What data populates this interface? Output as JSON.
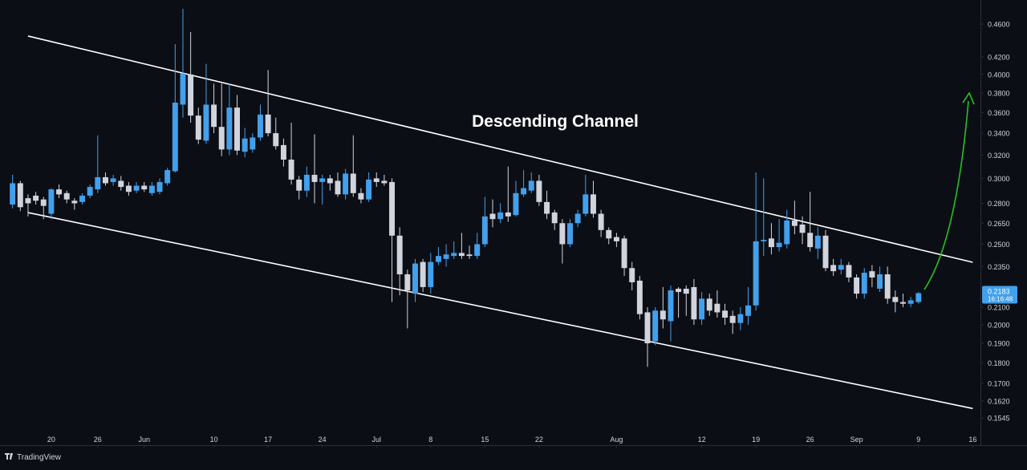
{
  "chart_data": {
    "type": "candlestick",
    "title": "Descending Channel",
    "log_scale": true,
    "grid": false,
    "up_color": "#42a0ec",
    "down_color": "#d1d4dc",
    "x": [
      "May 15",
      "May 16",
      "May 17",
      "May 18",
      "May 19",
      "May 20",
      "May 21",
      "May 22",
      "May 23",
      "May 24",
      "May 25",
      "May 26",
      "May 27",
      "May 28",
      "May 29",
      "May 30",
      "May 31",
      "Jun 1",
      "Jun 2",
      "Jun 3",
      "Jun 4",
      "Jun 5",
      "Jun 6",
      "Jun 7",
      "Jun 8",
      "Jun 9",
      "Jun 10",
      "Jun 11",
      "Jun 12",
      "Jun 13",
      "Jun 14",
      "Jun 15",
      "Jun 16",
      "Jun 17",
      "Jun 18",
      "Jun 19",
      "Jun 20",
      "Jun 21",
      "Jun 22",
      "Jun 23",
      "Jun 24",
      "Jun 25",
      "Jun 26",
      "Jun 27",
      "Jun 28",
      "Jun 29",
      "Jun 30",
      "Jul 1",
      "Jul 2",
      "Jul 3",
      "Jul 4",
      "Jul 5",
      "Jul 6",
      "Jul 7",
      "Jul 8",
      "Jul 9",
      "Jul 10",
      "Jul 11",
      "Jul 12",
      "Jul 13",
      "Jul 14",
      "Jul 15",
      "Jul 16",
      "Jul 17",
      "Jul 18",
      "Jul 19",
      "Jul 20",
      "Jul 21",
      "Jul 22",
      "Jul 23",
      "Jul 24",
      "Jul 25",
      "Jul 26",
      "Jul 27",
      "Jul 28",
      "Jul 29",
      "Jul 30",
      "Jul 31",
      "Aug 1",
      "Aug 2",
      "Aug 3",
      "Aug 4",
      "Aug 5",
      "Aug 6",
      "Aug 7",
      "Aug 8",
      "Aug 9",
      "Aug 10",
      "Aug 11",
      "Aug 12",
      "Aug 13",
      "Aug 14",
      "Aug 15",
      "Aug 16",
      "Aug 17",
      "Aug 18",
      "Aug 19",
      "Aug 20",
      "Aug 21",
      "Aug 22",
      "Aug 23",
      "Aug 24",
      "Aug 25",
      "Aug 26",
      "Aug 27",
      "Aug 28",
      "Aug 29",
      "Aug 30",
      "Aug 31",
      "Sep 1",
      "Sep 2",
      "Sep 3",
      "Sep 4",
      "Sep 5",
      "Sep 6",
      "Sep 7",
      "Sep 8",
      "Sep 9"
    ],
    "open": [
      0.279,
      0.296,
      0.284,
      0.286,
      0.283,
      0.272,
      0.291,
      0.288,
      0.282,
      0.281,
      0.286,
      0.291,
      0.301,
      0.297,
      0.298,
      0.294,
      0.29,
      0.294,
      0.288,
      0.289,
      0.296,
      0.306,
      0.368,
      0.4,
      0.357,
      0.333,
      0.368,
      0.346,
      0.325,
      0.365,
      0.323,
      0.325,
      0.336,
      0.358,
      0.34,
      0.329,
      0.316,
      0.299,
      0.29,
      0.303,
      0.297,
      0.3,
      0.298,
      0.287,
      0.304,
      0.288,
      0.283,
      0.3,
      0.298,
      0.297,
      0.256,
      0.23,
      0.218,
      0.238,
      0.222,
      0.238,
      0.24,
      0.242,
      0.244,
      0.243,
      0.242,
      0.25,
      0.272,
      0.268,
      0.273,
      0.271,
      0.287,
      0.29,
      0.298,
      0.281,
      0.273,
      0.265,
      0.25,
      0.265,
      0.272,
      0.287,
      0.272,
      0.26,
      0.255,
      0.254,
      0.234,
      0.226,
      0.207,
      0.191,
      0.208,
      0.202,
      0.221,
      0.221,
      0.222,
      0.203,
      0.215,
      0.212,
      0.208,
      0.205,
      0.201,
      0.205,
      0.211,
      0.252,
      0.254,
      0.248,
      0.25,
      0.267,
      0.264,
      0.258,
      0.247,
      0.256,
      0.236,
      0.233,
      0.236,
      0.228,
      0.218,
      0.232,
      0.221,
      0.23,
      0.216,
      0.213,
      0.212,
      0.213
    ],
    "high": [
      0.303,
      0.298,
      0.287,
      0.289,
      0.285,
      0.292,
      0.295,
      0.29,
      0.284,
      0.288,
      0.295,
      0.338,
      0.305,
      0.303,
      0.302,
      0.297,
      0.297,
      0.297,
      0.297,
      0.3,
      0.309,
      0.435,
      0.48,
      0.45,
      0.365,
      0.412,
      0.39,
      0.39,
      0.39,
      0.378,
      0.345,
      0.34,
      0.368,
      0.405,
      0.355,
      0.335,
      0.35,
      0.302,
      0.31,
      0.339,
      0.303,
      0.303,
      0.305,
      0.308,
      0.338,
      0.292,
      0.305,
      0.305,
      0.303,
      0.3,
      0.262,
      0.233,
      0.24,
      0.24,
      0.244,
      0.248,
      0.25,
      0.252,
      0.258,
      0.249,
      0.258,
      0.285,
      0.283,
      0.28,
      0.31,
      0.298,
      0.307,
      0.305,
      0.303,
      0.29,
      0.275,
      0.268,
      0.268,
      0.275,
      0.303,
      0.298,
      0.275,
      0.262,
      0.258,
      0.256,
      0.238,
      0.229,
      0.21,
      0.21,
      0.222,
      0.223,
      0.222,
      0.223,
      0.227,
      0.219,
      0.218,
      0.22,
      0.212,
      0.208,
      0.21,
      0.222,
      0.305,
      0.3,
      0.265,
      0.268,
      0.275,
      0.282,
      0.27,
      0.289,
      0.262,
      0.26,
      0.24,
      0.24,
      0.238,
      0.23,
      0.234,
      0.236,
      0.235,
      0.235,
      0.22,
      0.218,
      0.216,
      0.219
    ],
    "low": [
      0.276,
      0.274,
      0.27,
      0.279,
      0.268,
      0.268,
      0.284,
      0.28,
      0.275,
      0.279,
      0.284,
      0.288,
      0.294,
      0.294,
      0.29,
      0.286,
      0.288,
      0.289,
      0.286,
      0.287,
      0.294,
      0.305,
      0.355,
      0.35,
      0.33,
      0.33,
      0.34,
      0.319,
      0.32,
      0.32,
      0.318,
      0.322,
      0.333,
      0.337,
      0.325,
      0.31,
      0.295,
      0.283,
      0.285,
      0.28,
      0.279,
      0.29,
      0.285,
      0.283,
      0.285,
      0.28,
      0.281,
      0.293,
      0.294,
      0.213,
      0.217,
      0.198,
      0.213,
      0.219,
      0.218,
      0.236,
      0.235,
      0.24,
      0.24,
      0.24,
      0.24,
      0.248,
      0.262,
      0.265,
      0.266,
      0.27,
      0.285,
      0.288,
      0.278,
      0.268,
      0.26,
      0.237,
      0.248,
      0.262,
      0.27,
      0.269,
      0.255,
      0.25,
      0.248,
      0.229,
      0.22,
      0.203,
      0.178,
      0.189,
      0.198,
      0.191,
      0.204,
      0.205,
      0.2,
      0.2,
      0.205,
      0.204,
      0.2,
      0.195,
      0.197,
      0.2,
      0.208,
      0.242,
      0.243,
      0.245,
      0.247,
      0.257,
      0.25,
      0.245,
      0.24,
      0.232,
      0.229,
      0.23,
      0.225,
      0.215,
      0.215,
      0.222,
      0.219,
      0.212,
      0.207,
      0.21,
      0.21,
      0.212
    ],
    "close": [
      0.296,
      0.277,
      0.28,
      0.282,
      0.278,
      0.291,
      0.287,
      0.283,
      0.28,
      0.286,
      0.293,
      0.301,
      0.296,
      0.3,
      0.293,
      0.289,
      0.294,
      0.291,
      0.294,
      0.297,
      0.307,
      0.37,
      0.401,
      0.357,
      0.334,
      0.368,
      0.346,
      0.325,
      0.365,
      0.324,
      0.335,
      0.336,
      0.358,
      0.34,
      0.328,
      0.316,
      0.299,
      0.29,
      0.303,
      0.297,
      0.3,
      0.296,
      0.287,
      0.304,
      0.288,
      0.283,
      0.299,
      0.297,
      0.296,
      0.256,
      0.23,
      0.22,
      0.237,
      0.222,
      0.238,
      0.242,
      0.243,
      0.244,
      0.242,
      0.242,
      0.25,
      0.27,
      0.268,
      0.273,
      0.27,
      0.288,
      0.292,
      0.298,
      0.281,
      0.272,
      0.265,
      0.25,
      0.265,
      0.272,
      0.287,
      0.272,
      0.26,
      0.254,
      0.252,
      0.234,
      0.225,
      0.206,
      0.19,
      0.208,
      0.203,
      0.22,
      0.219,
      0.218,
      0.203,
      0.215,
      0.208,
      0.207,
      0.204,
      0.201,
      0.206,
      0.211,
      0.252,
      0.253,
      0.248,
      0.251,
      0.267,
      0.263,
      0.258,
      0.248,
      0.256,
      0.234,
      0.232,
      0.236,
      0.228,
      0.218,
      0.231,
      0.228,
      0.23,
      0.215,
      0.213,
      0.212,
      0.214,
      0.2183
    ],
    "last_value_label": "0.2183",
    "countdown": "16:16:48",
    "xlim": [
      "May 14",
      "Sep 17"
    ],
    "xticks": [
      {
        "value": "May 20",
        "label": "20"
      },
      {
        "value": "May 26",
        "label": "26"
      },
      {
        "value": "Jun 1",
        "label": "Jun"
      },
      {
        "value": "Jun 10",
        "label": "10"
      },
      {
        "value": "Jun 17",
        "label": "17"
      },
      {
        "value": "Jun 24",
        "label": "24"
      },
      {
        "value": "Jul 1",
        "label": "Jul"
      },
      {
        "value": "Jul 8",
        "label": "8"
      },
      {
        "value": "Jul 15",
        "label": "15"
      },
      {
        "value": "Jul 22",
        "label": "22"
      },
      {
        "value": "Aug 1",
        "label": "Aug"
      },
      {
        "value": "Aug 12",
        "label": "12"
      },
      {
        "value": "Aug 19",
        "label": "19"
      },
      {
        "value": "Aug 26",
        "label": "26"
      },
      {
        "value": "Sep 1",
        "label": "Sep"
      },
      {
        "value": "Sep 9",
        "label": "9"
      },
      {
        "value": "Sep 16",
        "label": "16"
      }
    ],
    "ylim": [
      0.1433,
      0.4917
    ],
    "yticks": [
      {
        "value": 0.46,
        "label": "0.4600"
      },
      {
        "value": 0.42,
        "label": "0.4200"
      },
      {
        "value": 0.4,
        "label": "0.4000"
      },
      {
        "value": 0.38,
        "label": "0.3800"
      },
      {
        "value": 0.36,
        "label": "0.3600"
      },
      {
        "value": 0.34,
        "label": "0.3400"
      },
      {
        "value": 0.32,
        "label": "0.3200"
      },
      {
        "value": 0.3,
        "label": "0.3000"
      },
      {
        "value": 0.28,
        "label": "0.2800"
      },
      {
        "value": 0.265,
        "label": "0.2650"
      },
      {
        "value": 0.25,
        "label": "0.2500"
      },
      {
        "value": 0.235,
        "label": "0.2350"
      },
      {
        "value": 0.21,
        "label": "0.2100"
      },
      {
        "value": 0.2,
        "label": "0.2000"
      },
      {
        "value": 0.19,
        "label": "0.1900"
      },
      {
        "value": 0.18,
        "label": "0.1800"
      },
      {
        "value": 0.17,
        "label": "0.1700"
      },
      {
        "value": 0.162,
        "label": "0.1620"
      },
      {
        "value": 0.1545,
        "label": "0.1545"
      }
    ],
    "trendlines": [
      {
        "x": [
          "May 17",
          "Sep 16"
        ],
        "y": [
          0.445,
          0.2378
        ]
      },
      {
        "x": [
          "May 17",
          "Sep 16"
        ],
        "y": [
          0.2729,
          0.1586
        ]
      }
    ],
    "watermark": "TradingView"
  }
}
